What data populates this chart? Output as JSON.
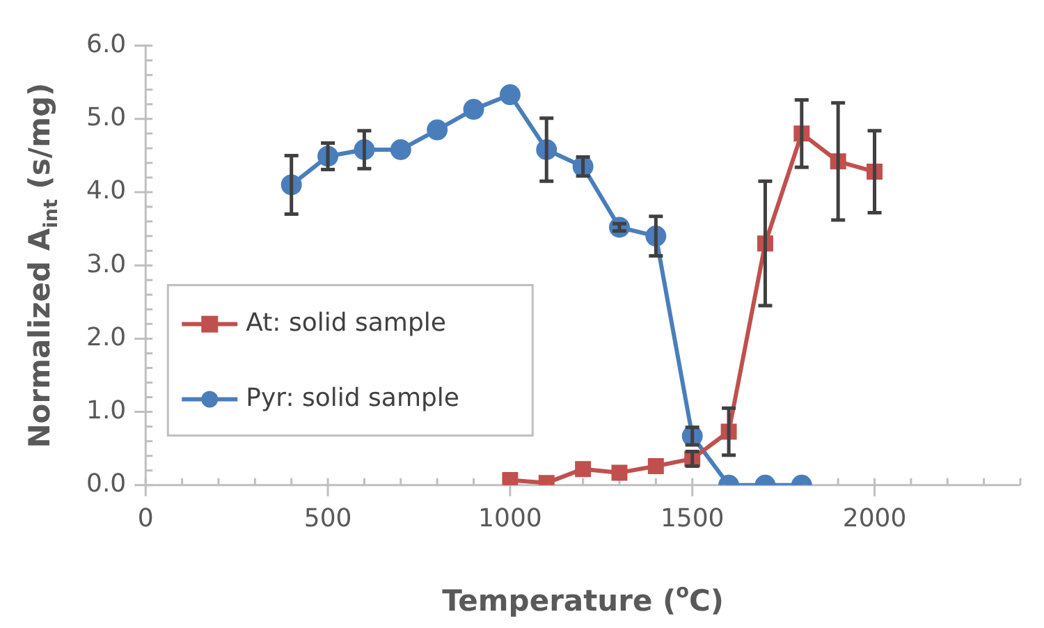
{
  "chart_data": {
    "type": "line",
    "xlabel": "Temperature ($^{o}$C)",
    "ylabel": "Normalized A$_{int}$ (s/mg)",
    "xlim": [
      0,
      2400
    ],
    "xticks": [
      0,
      500,
      1000,
      1500,
      2000
    ],
    "ylim": [
      0,
      6
    ],
    "yticks": [
      {
        "value": 0,
        "label": "0.0"
      },
      {
        "value": 1,
        "label": "1.0"
      },
      {
        "value": 2,
        "label": "2.0"
      },
      {
        "value": 3,
        "label": "3.0"
      },
      {
        "value": 4,
        "label": "4.0"
      },
      {
        "value": 5,
        "label": "5.0"
      },
      {
        "value": 6,
        "label": "6.0"
      }
    ],
    "grid": false,
    "legend": "left",
    "series": [
      {
        "name": "At: solid sample",
        "color": "#c0504d",
        "marker": "square",
        "x": [
          1000,
          1100,
          1200,
          1300,
          1400,
          1500,
          1600,
          1700,
          1800,
          1900,
          2000
        ],
        "values": [
          0.07,
          0.03,
          0.22,
          0.17,
          0.26,
          0.36,
          0.73,
          3.3,
          4.8,
          4.42,
          4.28
        ],
        "errors": [
          null,
          null,
          null,
          null,
          null,
          0.1,
          0.32,
          0.85,
          0.46,
          0.8,
          0.56
        ]
      },
      {
        "name": "Pyr: solid sample",
        "color": "#4a7ebb",
        "marker": "circle",
        "x": [
          400,
          500,
          600,
          700,
          800,
          900,
          1000,
          1100,
          1200,
          1300,
          1400,
          1500,
          1600,
          1700,
          1800
        ],
        "values": [
          4.1,
          4.49,
          4.58,
          4.58,
          4.85,
          5.13,
          5.33,
          4.58,
          4.35,
          3.52,
          3.4,
          0.67,
          0,
          0,
          0
        ],
        "errors": [
          0.4,
          0.18,
          0.26,
          null,
          null,
          null,
          null,
          0.43,
          0.13,
          0.05,
          0.27,
          0.12,
          null,
          null,
          null
        ]
      }
    ]
  }
}
